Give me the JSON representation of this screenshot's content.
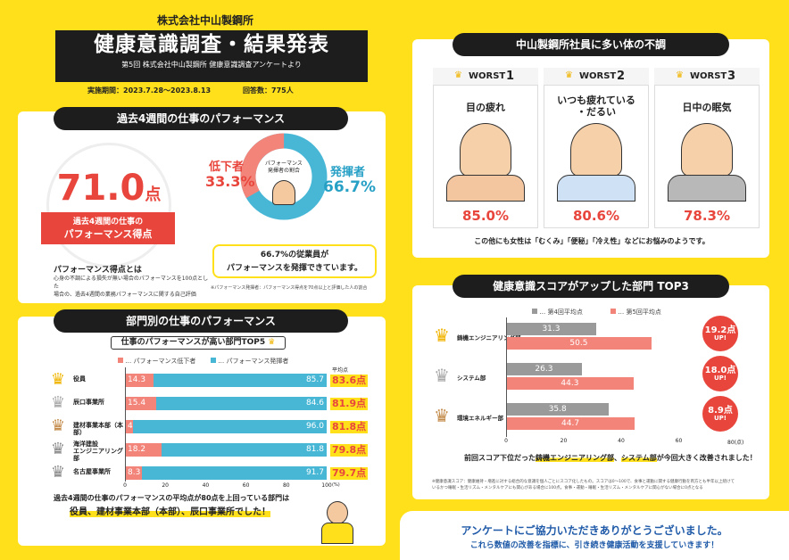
{
  "header": {
    "company": "株式会社中山製鋼所",
    "title": "健康意識調査・結果発表",
    "subtitle": "第5回 株式会社中山製鋼所 健康意識調査アンケートより",
    "period": "実施期間：2023.7.28～2023.8.13",
    "respondents": "回答数：775人"
  },
  "section1": {
    "title": "過去4週間の仕事のパフォーマンス",
    "score": "71.0",
    "score_unit": "点",
    "score_label_1": "過去4週間の仕事の",
    "score_label_2": "パフォーマンス得点",
    "def_title": "パフォーマンス得点とは",
    "def_body_1": "心身の不調による損失が無い場合のパフォーマンスを100点とした",
    "def_body_2": "場合の、過去4週間の業務パフォーマンスに関する自己評価",
    "donut_center_1": "パフォーマンス",
    "donut_center_2": "発揮者の割合",
    "low_label": "低下者",
    "low_value": "33.3%",
    "high_label": "発揮者",
    "high_value": "66.7%",
    "note_1": "66.7%の従業員が",
    "note_2": "パフォーマンスを発揮できています。",
    "footnote": "※パフォーマンス発揮者：パフォーマンス得点を70点以上と評価した人の割合"
  },
  "section2": {
    "title": "部門別の仕事のパフォーマンス",
    "box_title": "仕事のパフォーマンスが高い部門TOP5",
    "legend_low": "… パフォーマンス低下者",
    "legend_high": "… パフォーマンス発揮者",
    "avg_header": "平均点",
    "axis": [
      "0",
      "20",
      "40",
      "60",
      "80",
      "100"
    ],
    "axis_unit": "(%)",
    "summary_1": "過去4週間の仕事のパフォーマンスの平均点が80点を上回っている部門は",
    "summary_2": "役員、建材事業本部（本部）、辰口事業所でした！",
    "rows": [
      {
        "rank": "1",
        "name": "役員",
        "low": "14.3",
        "high": "85.7",
        "avg": "83.6点"
      },
      {
        "rank": "2",
        "name": "辰口事業所",
        "low": "15.4",
        "high": "84.6",
        "avg": "81.9点"
      },
      {
        "rank": "3",
        "name": "建材事業本部（本部）",
        "low": "4.0",
        "high": "96.0",
        "avg": "81.8点"
      },
      {
        "rank": "4",
        "name": "海洋建設\nエンジニアリング部",
        "low": "18.2",
        "high": "81.8",
        "avg": "79.8点"
      },
      {
        "rank": "5",
        "name": "名古屋事業所",
        "low": "8.3",
        "high": "91.7",
        "avg": "79.7点"
      }
    ]
  },
  "section3": {
    "title": "中山製鋼所社員に多い体の不調",
    "worsts": [
      {
        "label": "WORST",
        "num": "1",
        "symptom": "目の疲れ",
        "pct": "85.0%"
      },
      {
        "label": "WORST",
        "num": "2",
        "symptom": "いつも疲れている\n・だるい",
        "pct": "80.6%"
      },
      {
        "label": "WORST",
        "num": "3",
        "symptom": "日中の眠気",
        "pct": "78.3%"
      }
    ],
    "note": "この他にも女性は「むくみ」「便秘」「冷え性」などにお悩みのようです。"
  },
  "section4": {
    "title": "健康意識スコアがアップした部門 TOP3",
    "legend_prev": "… 第4回平均点",
    "legend_curr": "… 第5回平均点",
    "axis": [
      "0",
      "20",
      "40",
      "60"
    ],
    "axis_unit": "80(点)",
    "summary_pre": "前回スコア下位だった",
    "summary_hl1": "鋳機エンジニアリング部",
    "summary_mid": "、",
    "summary_hl2": "システム部",
    "summary_post": "が今回大きく改善されました！",
    "footnote_1": "※健康意識スコア：健康維持・増進に対する総合的な意識を個人ごとにスコア化したもの。スコアは0～100で、食事と運動に関する健康行動を両方とも半年以上続けて",
    "footnote_2": "いるかつ睡眠・生活リズム・メンタルケアにも関心がある場合に100点。食事・運動・睡眠・生活リズム・メンタルケアに関心がない場合に0点となる",
    "rows": [
      {
        "name": "鋳機エンジニアリング部",
        "prev": "31.3",
        "curr": "50.5",
        "gain": "19.2点",
        "up": "UP!"
      },
      {
        "name": "システム部",
        "prev": "26.3",
        "curr": "44.3",
        "gain": "18.0点",
        "up": "UP!"
      },
      {
        "name": "環境エネルギー部",
        "prev": "35.8",
        "curr": "44.7",
        "gain": "8.9点",
        "up": "UP!"
      }
    ]
  },
  "footer": {
    "line1": "アンケートにご協力いただきありがとうございました。",
    "line2": "これら数値の改善を指標に、引き続き健康活動を支援していきます！"
  },
  "chart_data": [
    {
      "type": "bar",
      "title": "仕事のパフォーマンスが高い部門TOP5",
      "categories": [
        "役員",
        "辰口事業所",
        "建材事業本部（本部）",
        "海洋建設エンジニアリング部",
        "名古屋事業所"
      ],
      "series": [
        {
          "name": "パフォーマンス低下者",
          "values": [
            14.3,
            15.4,
            4.0,
            18.2,
            8.3
          ]
        },
        {
          "name": "パフォーマンス発揮者",
          "values": [
            85.7,
            84.6,
            96.0,
            81.8,
            91.7
          ]
        }
      ],
      "xlim": [
        0,
        100
      ]
    },
    {
      "type": "bar",
      "title": "健康意識スコアがアップした部門 TOP3",
      "categories": [
        "鋳機エンジニアリング部",
        "システム部",
        "環境エネルギー部"
      ],
      "series": [
        {
          "name": "第4回平均点",
          "values": [
            31.3,
            26.3,
            35.8
          ]
        },
        {
          "name": "第5回平均点",
          "values": [
            50.5,
            44.3,
            44.7
          ]
        }
      ],
      "xlim": [
        0,
        80
      ]
    },
    {
      "type": "pie",
      "values": [
        33.3,
        66.7
      ],
      "categories": [
        "低下者",
        "発揮者"
      ]
    }
  ],
  "colors": {
    "yellow": "#ffe01b",
    "red": "#e8463c",
    "pink": "#f2847a",
    "blue": "#48b7d6",
    "gray": "#9a9a9a",
    "dark": "#1d1d1d"
  }
}
